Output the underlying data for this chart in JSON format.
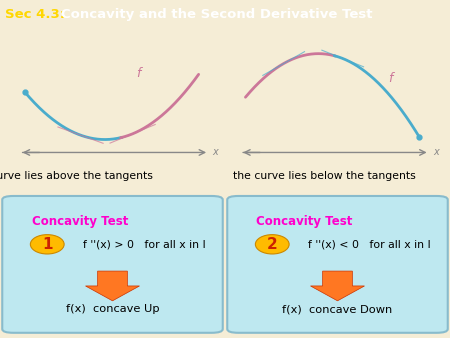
{
  "title_sec43": "Sec 4.3: ",
  "title_rest": "Concavity and the Second Derivative Test",
  "title_bg": "#8B0000",
  "title_fg": "#FFD700",
  "title_sec_fg": "#FFFFFF",
  "bg_color": "#F5EDD6",
  "graph_bg": "#FFFFFF",
  "curve_blue": "#4AACCC",
  "curve_pink": "#CC7799",
  "box_bg": "#BEE8F0",
  "box_border": "#88BBCC",
  "concavity_title_color": "#FF00CC",
  "number_bg": "#FFBB00",
  "number_color": "#CC2200",
  "arrow_fill": "#FF7722",
  "text_caption1": "the curve lies above the tangents",
  "text_caption2": "the curve lies below the tangents",
  "box1_title": "Concavity Test",
  "box1_line1": "f ''(x) > 0   for all x in I",
  "box1_line2": "f(x)  concave Up",
  "box2_title": "Concavity Test",
  "box2_line1": "f ''(x) < 0   for all x in I",
  "box2_line2": "f(x)  concave Down",
  "num1": "1",
  "num2": "2"
}
